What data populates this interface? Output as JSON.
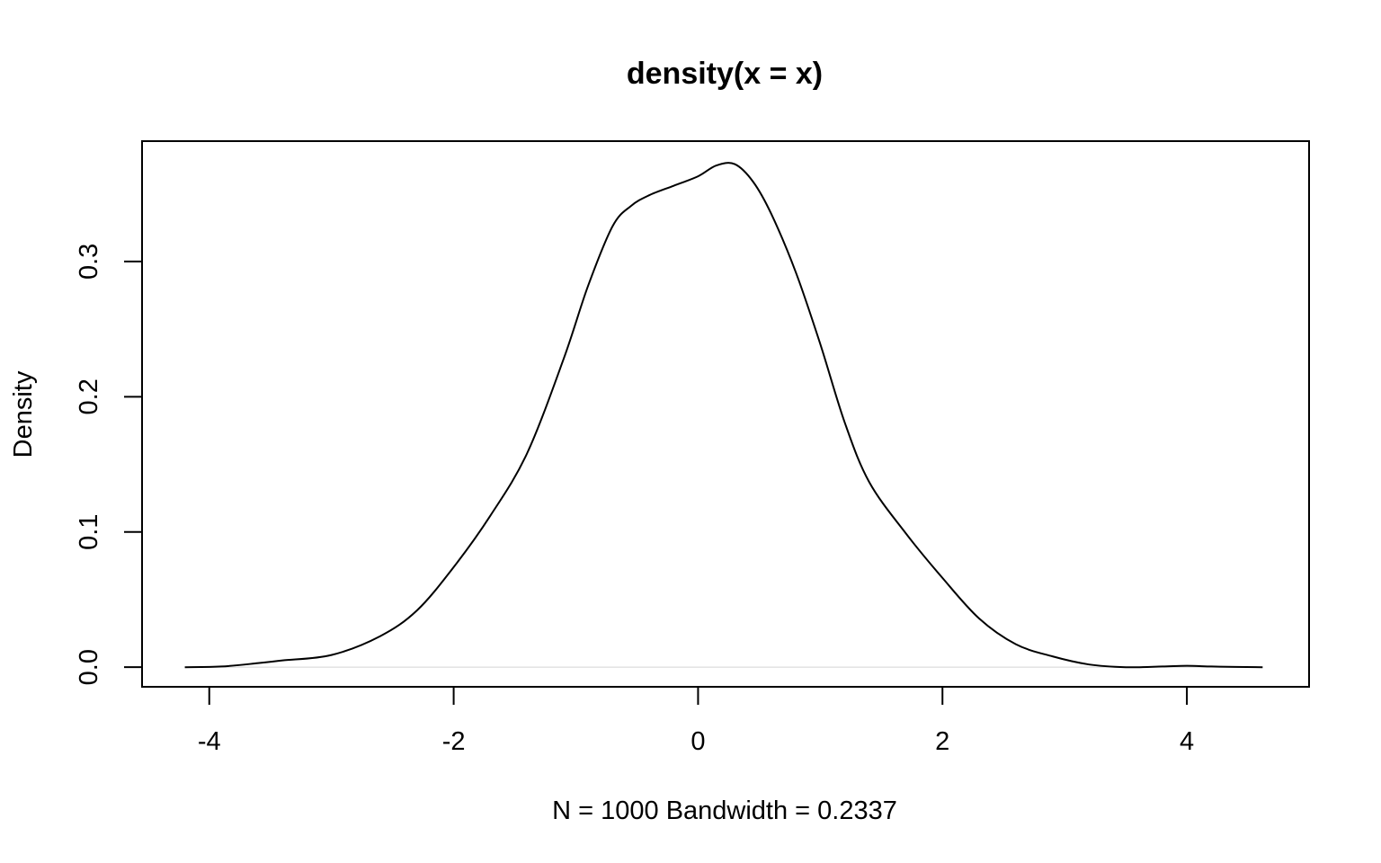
{
  "chart_data": {
    "type": "line",
    "title": "density(x = x)",
    "xlabel": "N = 1000   Bandwidth = 0.2337",
    "ylabel": "Density",
    "xlim": [
      -4.55,
      5.0
    ],
    "ylim": [
      -0.0145,
      0.389
    ],
    "xticks": [
      "-4",
      "-2",
      "0",
      "2",
      "4"
    ],
    "xtick_values": [
      -4,
      -2,
      0,
      2,
      4
    ],
    "yticks": [
      "0.0",
      "0.1",
      "0.2",
      "0.3"
    ],
    "ytick_values": [
      0.0,
      0.1,
      0.2,
      0.3
    ],
    "grid": false,
    "zero_line_color": "#d3d3d3",
    "series": [
      {
        "x": [
          -4.2,
          -3.9,
          -3.6,
          -3.4,
          -3.0,
          -2.6,
          -2.3,
          -2.0,
          -1.7,
          -1.4,
          -1.1,
          -0.9,
          -0.7,
          -0.55,
          -0.4,
          -0.2,
          0.0,
          0.15,
          0.3,
          0.45,
          0.6,
          0.8,
          1.0,
          1.2,
          1.4,
          1.7,
          2.0,
          2.3,
          2.6,
          2.9,
          3.2,
          3.5,
          3.8,
          4.0,
          4.2,
          4.4,
          4.62
        ],
        "y": [
          0.0,
          0.0005,
          0.003,
          0.005,
          0.009,
          0.023,
          0.042,
          0.074,
          0.112,
          0.158,
          0.228,
          0.282,
          0.326,
          0.341,
          0.349,
          0.356,
          0.363,
          0.371,
          0.372,
          0.359,
          0.335,
          0.292,
          0.239,
          0.181,
          0.137,
          0.099,
          0.066,
          0.036,
          0.017,
          0.008,
          0.002,
          0.0,
          0.0005,
          0.001,
          0.0005,
          0.0002,
          0.0
        ]
      }
    ]
  }
}
